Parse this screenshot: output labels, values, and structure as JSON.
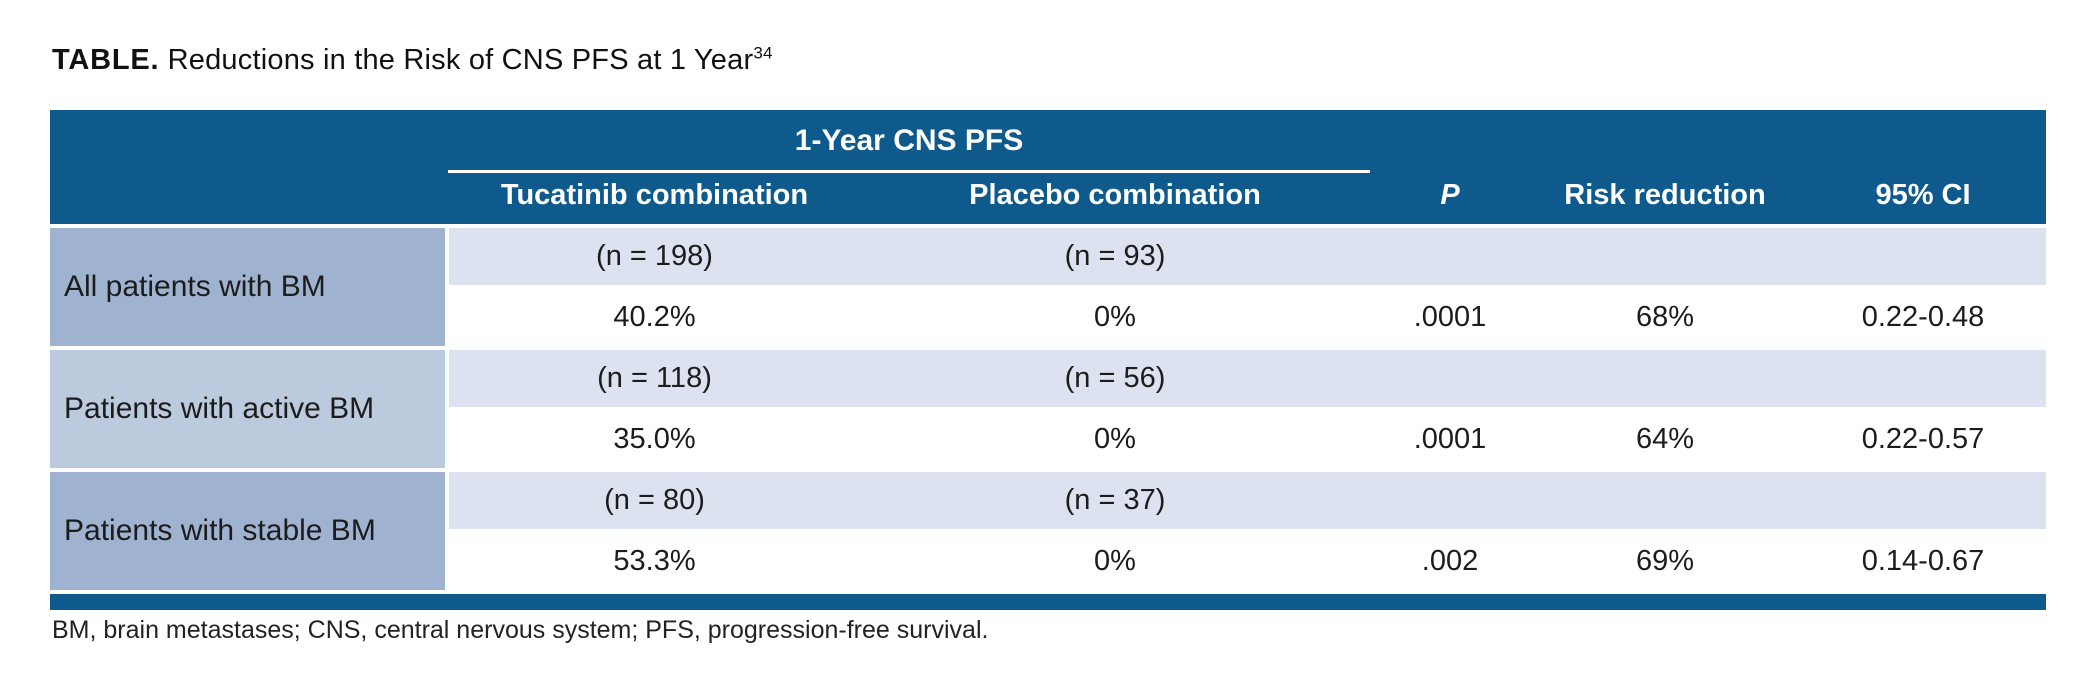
{
  "title": {
    "label": "TABLE.",
    "text": " Reductions in the Risk of CNS PFS at 1 Year",
    "superscript": "34"
  },
  "colors": {
    "header_blue": "#0f5a8c",
    "row_label_dark": "#9fb3d1",
    "row_label_light": "#bccade",
    "row_tint": "#dce2ef",
    "text_dark": "#1c1c1c"
  },
  "table": {
    "spanner": "1-Year CNS PFS",
    "columns": {
      "tucatinib": "Tucatinib combination",
      "placebo": "Placebo combination",
      "p": "P",
      "risk_reduction": "Risk reduction",
      "ci": "95% CI"
    },
    "groups": [
      {
        "label": "All patients with BM",
        "n": {
          "tucatinib": "(n = 198)",
          "placebo": "(n = 93)"
        },
        "values": {
          "tucatinib": "40.2%",
          "placebo": "0%",
          "p": ".0001",
          "risk_reduction": "68%",
          "ci": "0.22-0.48"
        }
      },
      {
        "label": "Patients with active BM",
        "n": {
          "tucatinib": "(n = 118)",
          "placebo": "(n = 56)"
        },
        "values": {
          "tucatinib": "35.0%",
          "placebo": "0%",
          "p": ".0001",
          "risk_reduction": "64%",
          "ci": "0.22-0.57"
        }
      },
      {
        "label": "Patients with stable BM",
        "n": {
          "tucatinib": "(n = 80)",
          "placebo": "(n = 37)"
        },
        "values": {
          "tucatinib": "53.3%",
          "placebo": "0%",
          "p": ".002",
          "risk_reduction": "69%",
          "ci": "0.14-0.67"
        }
      }
    ]
  },
  "footnote": "BM, brain metastases; CNS, central nervous system; PFS, progression-free survival."
}
